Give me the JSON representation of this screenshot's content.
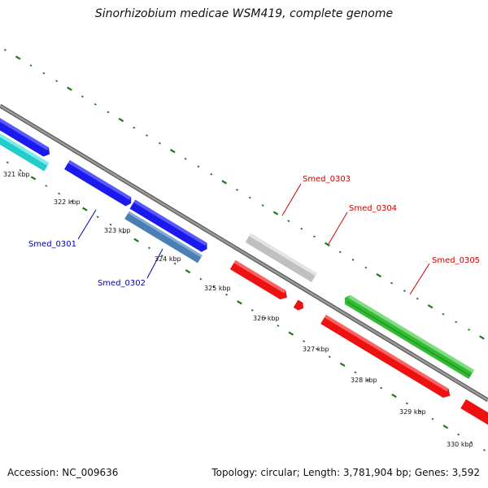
{
  "title": "Sinorhizobium medicae WSM419, complete genome",
  "footer": {
    "accession": "Accession: NC_009636",
    "summary": "Topology: circular; Length: 3,781,904 bp; Genes: 3,592"
  },
  "ticks": [
    "321 kbp",
    "322 kbp",
    "323 kbp",
    "324 kbp",
    "325 kbp",
    "326 kbp",
    "327 kbp",
    "328 kbp",
    "329 kbp",
    "330 kbp"
  ],
  "gene_labels": {
    "smed_0301": "Smed_0301",
    "smed_0302": "Smed_0302",
    "smed_0303": "Smed_0303",
    "smed_0304": "Smed_0304",
    "smed_0305": "Smed_0305"
  },
  "colors": {
    "blue": "#1a1aee",
    "cyan": "#22cccc",
    "steelblue": "#4a7fb5",
    "gray": "#c0c0c0",
    "red": "#ee1111",
    "green": "#33bb33",
    "backbone": "#808080",
    "tick": "#1a7a1a",
    "label_blue": "#0000aa",
    "label_red": "#cc0000"
  }
}
